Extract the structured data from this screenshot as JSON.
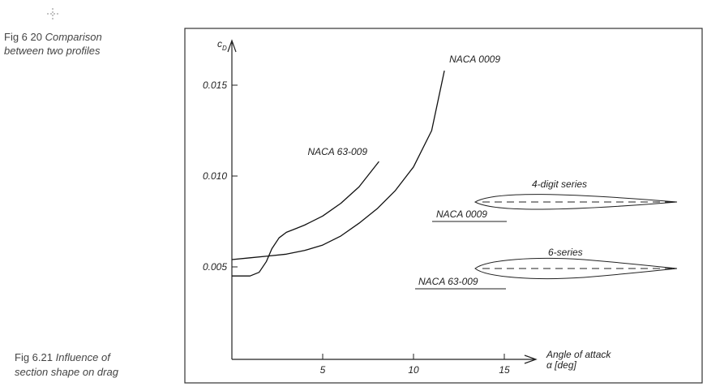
{
  "captions": {
    "fig20_number": "Fig 6 20",
    "fig20_text": "Comparison",
    "fig20_text2": "between two profiles",
    "fig21_number": "Fig 6.21",
    "fig21_text": "Influence of",
    "fig21_text2": "section shape on drag"
  },
  "chart_data": {
    "type": "line",
    "ylabel": "c",
    "ylabel_sub": "D",
    "xlabel": "Angle of attack",
    "xlabel_unit": "α [deg]",
    "xlim": [
      0,
      16.7
    ],
    "ylim": [
      0,
      0.0175
    ],
    "xticks": [
      5,
      10,
      15
    ],
    "yticks": [
      {
        "value": 0.005,
        "label": "0.005"
      },
      {
        "value": 0.01,
        "label": "0.010"
      },
      {
        "value": 0.015,
        "label": "0.015"
      }
    ],
    "series": [
      {
        "name": "NACA 0009",
        "color": "#111111",
        "x": [
          0,
          1,
          2,
          3,
          4,
          5,
          6,
          7,
          8,
          9,
          10,
          11,
          11.7
        ],
        "values": [
          0.0054,
          0.0055,
          0.0056,
          0.0057,
          0.0059,
          0.0062,
          0.0067,
          0.0074,
          0.0082,
          0.0092,
          0.0105,
          0.0125,
          0.0158
        ]
      },
      {
        "name": "NACA 63-009",
        "color": "#111111",
        "x": [
          0,
          1,
          1.5,
          1.9,
          2.2,
          2.6,
          3,
          3.5,
          4,
          5,
          6,
          7,
          8.1
        ],
        "values": [
          0.0045,
          0.0045,
          0.0047,
          0.0053,
          0.006,
          0.0066,
          0.0069,
          0.0071,
          0.0073,
          0.0078,
          0.0085,
          0.0094,
          0.0108
        ]
      }
    ],
    "profiles": [
      {
        "series": "4-digit series",
        "label": "NACA 0009"
      },
      {
        "series": "6-series",
        "label": "NACA 63-009"
      }
    ]
  }
}
